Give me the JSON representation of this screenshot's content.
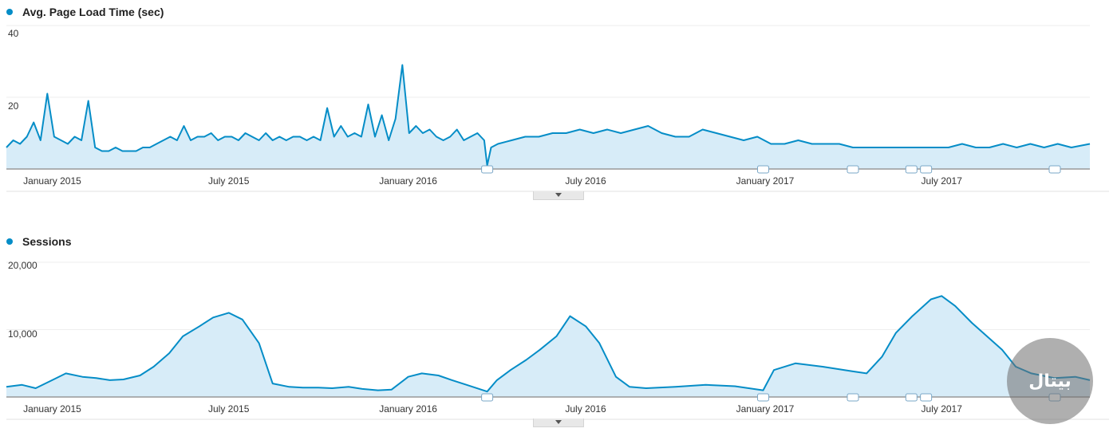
{
  "colors": {
    "line": "#058dc7",
    "fill": "#d7ecf8",
    "grid": "#eeeeee",
    "axis": "#333333"
  },
  "watermark": {
    "text": "بیتال"
  },
  "chart_data": [
    {
      "type": "area",
      "title": "Avg. Page Load Time (sec)",
      "legend": "top-left",
      "grid": true,
      "ylim": [
        0,
        40
      ],
      "yticks": [
        {
          "value": 40,
          "label": "40"
        },
        {
          "value": 20,
          "label": "20"
        }
      ],
      "xticks": [
        {
          "date": "2015-01-01",
          "label": "January 2015"
        },
        {
          "date": "2015-07-01",
          "label": "July 2015"
        },
        {
          "date": "2016-01-01",
          "label": "January 2016"
        },
        {
          "date": "2016-07-01",
          "label": "July 2016"
        },
        {
          "date": "2017-01-01",
          "label": "January 2017"
        },
        {
          "date": "2017-07-01",
          "label": "July 2017"
        }
      ],
      "x_range": [
        "2014-11-15",
        "2017-11-30"
      ],
      "annotation_markers": [
        "2016-03-22",
        "2016-12-30",
        "2017-04-01",
        "2017-05-31",
        "2017-06-15",
        "2017-10-25"
      ],
      "series": [
        {
          "name": "Avg. Page Load Time (sec)",
          "points": [
            [
              "2014-11-15",
              6
            ],
            [
              "2014-11-22",
              8
            ],
            [
              "2014-11-29",
              7
            ],
            [
              "2014-12-06",
              9
            ],
            [
              "2014-12-13",
              13
            ],
            [
              "2014-12-20",
              8
            ],
            [
              "2014-12-27",
              21
            ],
            [
              "2015-01-03",
              9
            ],
            [
              "2015-01-10",
              8
            ],
            [
              "2015-01-17",
              7
            ],
            [
              "2015-01-24",
              9
            ],
            [
              "2015-01-31",
              8
            ],
            [
              "2015-02-07",
              19
            ],
            [
              "2015-02-14",
              6
            ],
            [
              "2015-02-21",
              5
            ],
            [
              "2015-02-28",
              5
            ],
            [
              "2015-03-07",
              6
            ],
            [
              "2015-03-14",
              5
            ],
            [
              "2015-03-21",
              5
            ],
            [
              "2015-03-28",
              5
            ],
            [
              "2015-04-04",
              6
            ],
            [
              "2015-04-11",
              6
            ],
            [
              "2015-04-18",
              7
            ],
            [
              "2015-04-25",
              8
            ],
            [
              "2015-05-02",
              9
            ],
            [
              "2015-05-09",
              8
            ],
            [
              "2015-05-16",
              12
            ],
            [
              "2015-05-23",
              8
            ],
            [
              "2015-05-30",
              9
            ],
            [
              "2015-06-06",
              9
            ],
            [
              "2015-06-13",
              10
            ],
            [
              "2015-06-20",
              8
            ],
            [
              "2015-06-27",
              9
            ],
            [
              "2015-07-04",
              9
            ],
            [
              "2015-07-11",
              8
            ],
            [
              "2015-07-18",
              10
            ],
            [
              "2015-07-25",
              9
            ],
            [
              "2015-08-01",
              8
            ],
            [
              "2015-08-08",
              10
            ],
            [
              "2015-08-15",
              8
            ],
            [
              "2015-08-22",
              9
            ],
            [
              "2015-08-29",
              8
            ],
            [
              "2015-09-05",
              9
            ],
            [
              "2015-09-12",
              9
            ],
            [
              "2015-09-19",
              8
            ],
            [
              "2015-09-26",
              9
            ],
            [
              "2015-10-03",
              8
            ],
            [
              "2015-10-10",
              17
            ],
            [
              "2015-10-17",
              9
            ],
            [
              "2015-10-24",
              12
            ],
            [
              "2015-10-31",
              9
            ],
            [
              "2015-11-07",
              10
            ],
            [
              "2015-11-14",
              9
            ],
            [
              "2015-11-21",
              18
            ],
            [
              "2015-11-28",
              9
            ],
            [
              "2015-12-05",
              15
            ],
            [
              "2015-12-12",
              8
            ],
            [
              "2015-12-19",
              14
            ],
            [
              "2015-12-26",
              29
            ],
            [
              "2016-01-02",
              10
            ],
            [
              "2016-01-09",
              12
            ],
            [
              "2016-01-16",
              10
            ],
            [
              "2016-01-23",
              11
            ],
            [
              "2016-01-30",
              9
            ],
            [
              "2016-02-06",
              8
            ],
            [
              "2016-02-13",
              9
            ],
            [
              "2016-02-20",
              11
            ],
            [
              "2016-02-27",
              8
            ],
            [
              "2016-03-05",
              9
            ],
            [
              "2016-03-12",
              10
            ],
            [
              "2016-03-19",
              8
            ],
            [
              "2016-03-22",
              1
            ],
            [
              "2016-03-26",
              6
            ],
            [
              "2016-04-02",
              7
            ],
            [
              "2016-04-16",
              8
            ],
            [
              "2016-04-30",
              9
            ],
            [
              "2016-05-14",
              9
            ],
            [
              "2016-05-28",
              10
            ],
            [
              "2016-06-11",
              10
            ],
            [
              "2016-06-25",
              11
            ],
            [
              "2016-07-09",
              10
            ],
            [
              "2016-07-23",
              11
            ],
            [
              "2016-08-06",
              10
            ],
            [
              "2016-08-20",
              11
            ],
            [
              "2016-09-03",
              12
            ],
            [
              "2016-09-17",
              10
            ],
            [
              "2016-10-01",
              9
            ],
            [
              "2016-10-15",
              9
            ],
            [
              "2016-10-29",
              11
            ],
            [
              "2016-11-12",
              10
            ],
            [
              "2016-11-26",
              9
            ],
            [
              "2016-12-10",
              8
            ],
            [
              "2016-12-24",
              9
            ],
            [
              "2017-01-07",
              7
            ],
            [
              "2017-01-21",
              7
            ],
            [
              "2017-02-04",
              8
            ],
            [
              "2017-02-18",
              7
            ],
            [
              "2017-03-04",
              7
            ],
            [
              "2017-03-18",
              7
            ],
            [
              "2017-04-01",
              6
            ],
            [
              "2017-04-15",
              6
            ],
            [
              "2017-04-29",
              6
            ],
            [
              "2017-05-13",
              6
            ],
            [
              "2017-05-27",
              6
            ],
            [
              "2017-06-10",
              6
            ],
            [
              "2017-06-24",
              6
            ],
            [
              "2017-07-08",
              6
            ],
            [
              "2017-07-22",
              7
            ],
            [
              "2017-08-05",
              6
            ],
            [
              "2017-08-19",
              6
            ],
            [
              "2017-09-02",
              7
            ],
            [
              "2017-09-16",
              6
            ],
            [
              "2017-09-30",
              7
            ],
            [
              "2017-10-14",
              6
            ],
            [
              "2017-10-28",
              7
            ],
            [
              "2017-11-11",
              6
            ],
            [
              "2017-11-30",
              7
            ]
          ]
        }
      ]
    },
    {
      "type": "area",
      "title": "Sessions",
      "legend": "top-left",
      "grid": true,
      "ylim": [
        0,
        20000
      ],
      "yticks": [
        {
          "value": 20000,
          "label": "20,000"
        },
        {
          "value": 10000,
          "label": "10,000"
        }
      ],
      "xticks": [
        {
          "date": "2015-01-01",
          "label": "January 2015"
        },
        {
          "date": "2015-07-01",
          "label": "July 2015"
        },
        {
          "date": "2016-01-01",
          "label": "January 2016"
        },
        {
          "date": "2016-07-01",
          "label": "July 2016"
        },
        {
          "date": "2017-01-01",
          "label": "January 2017"
        },
        {
          "date": "2017-07-01",
          "label": "July 2017"
        }
      ],
      "x_range": [
        "2014-11-15",
        "2017-11-30"
      ],
      "annotation_markers": [
        "2016-03-22",
        "2016-12-30",
        "2017-04-01",
        "2017-05-31",
        "2017-06-15",
        "2017-10-25"
      ],
      "series": [
        {
          "name": "Sessions",
          "points": [
            [
              "2014-11-15",
              1500
            ],
            [
              "2014-12-01",
              1800
            ],
            [
              "2014-12-15",
              1300
            ],
            [
              "2015-01-01",
              2500
            ],
            [
              "2015-01-15",
              3500
            ],
            [
              "2015-02-01",
              3000
            ],
            [
              "2015-02-15",
              2800
            ],
            [
              "2015-03-01",
              2500
            ],
            [
              "2015-03-15",
              2600
            ],
            [
              "2015-04-01",
              3200
            ],
            [
              "2015-04-15",
              4500
            ],
            [
              "2015-05-01",
              6500
            ],
            [
              "2015-05-15",
              9000
            ],
            [
              "2015-06-01",
              10500
            ],
            [
              "2015-06-15",
              11800
            ],
            [
              "2015-07-01",
              12500
            ],
            [
              "2015-07-15",
              11500
            ],
            [
              "2015-08-01",
              8000
            ],
            [
              "2015-08-15",
              2000
            ],
            [
              "2015-09-01",
              1500
            ],
            [
              "2015-09-15",
              1400
            ],
            [
              "2015-10-01",
              1400
            ],
            [
              "2015-10-15",
              1300
            ],
            [
              "2015-11-01",
              1500
            ],
            [
              "2015-11-15",
              1200
            ],
            [
              "2015-12-01",
              1000
            ],
            [
              "2015-12-15",
              1100
            ],
            [
              "2016-01-01",
              3000
            ],
            [
              "2016-01-15",
              3500
            ],
            [
              "2016-02-01",
              3200
            ],
            [
              "2016-02-15",
              2500
            ],
            [
              "2016-03-01",
              1800
            ],
            [
              "2016-03-22",
              800
            ],
            [
              "2016-04-01",
              2500
            ],
            [
              "2016-04-15",
              4000
            ],
            [
              "2016-05-01",
              5500
            ],
            [
              "2016-05-15",
              7000
            ],
            [
              "2016-06-01",
              9000
            ],
            [
              "2016-06-15",
              12000
            ],
            [
              "2016-07-01",
              10500
            ],
            [
              "2016-07-15",
              8000
            ],
            [
              "2016-08-01",
              3000
            ],
            [
              "2016-08-15",
              1500
            ],
            [
              "2016-09-01",
              1300
            ],
            [
              "2016-10-01",
              1500
            ],
            [
              "2016-11-01",
              1800
            ],
            [
              "2016-12-01",
              1600
            ],
            [
              "2016-12-30",
              1000
            ],
            [
              "2017-01-10",
              4000
            ],
            [
              "2017-02-01",
              5000
            ],
            [
              "2017-03-01",
              4500
            ],
            [
              "2017-04-01",
              3800
            ],
            [
              "2017-04-15",
              3500
            ],
            [
              "2017-05-01",
              6000
            ],
            [
              "2017-05-15",
              9500
            ],
            [
              "2017-06-01",
              12000
            ],
            [
              "2017-06-20",
              14500
            ],
            [
              "2017-07-01",
              15000
            ],
            [
              "2017-07-15",
              13500
            ],
            [
              "2017-08-01",
              11000
            ],
            [
              "2017-09-01",
              7000
            ],
            [
              "2017-09-15",
              4500
            ],
            [
              "2017-10-01",
              3500
            ],
            [
              "2017-10-25",
              2800
            ],
            [
              "2017-11-15",
              3000
            ],
            [
              "2017-11-30",
              2500
            ]
          ]
        }
      ]
    }
  ]
}
